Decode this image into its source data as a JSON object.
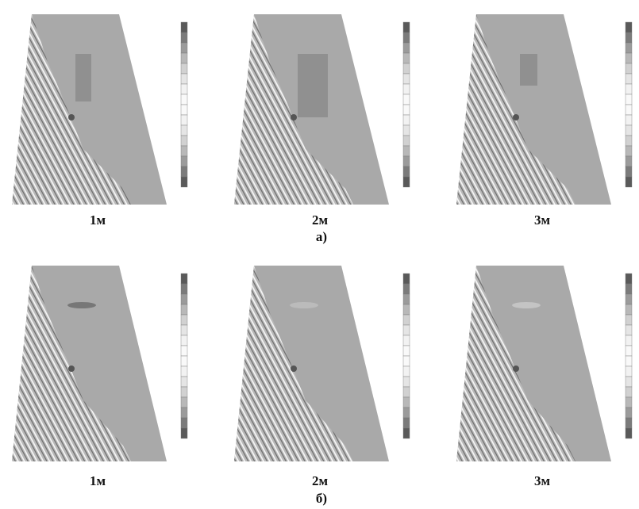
{
  "rows": [
    {
      "label": "а)",
      "panels": [
        {
          "label": "1м"
        },
        {
          "label": "2м"
        },
        {
          "label": "3м"
        }
      ]
    },
    {
      "label": "б)",
      "panels": [
        {
          "label": "1м"
        },
        {
          "label": "2м"
        },
        {
          "label": "3м"
        }
      ]
    }
  ]
}
